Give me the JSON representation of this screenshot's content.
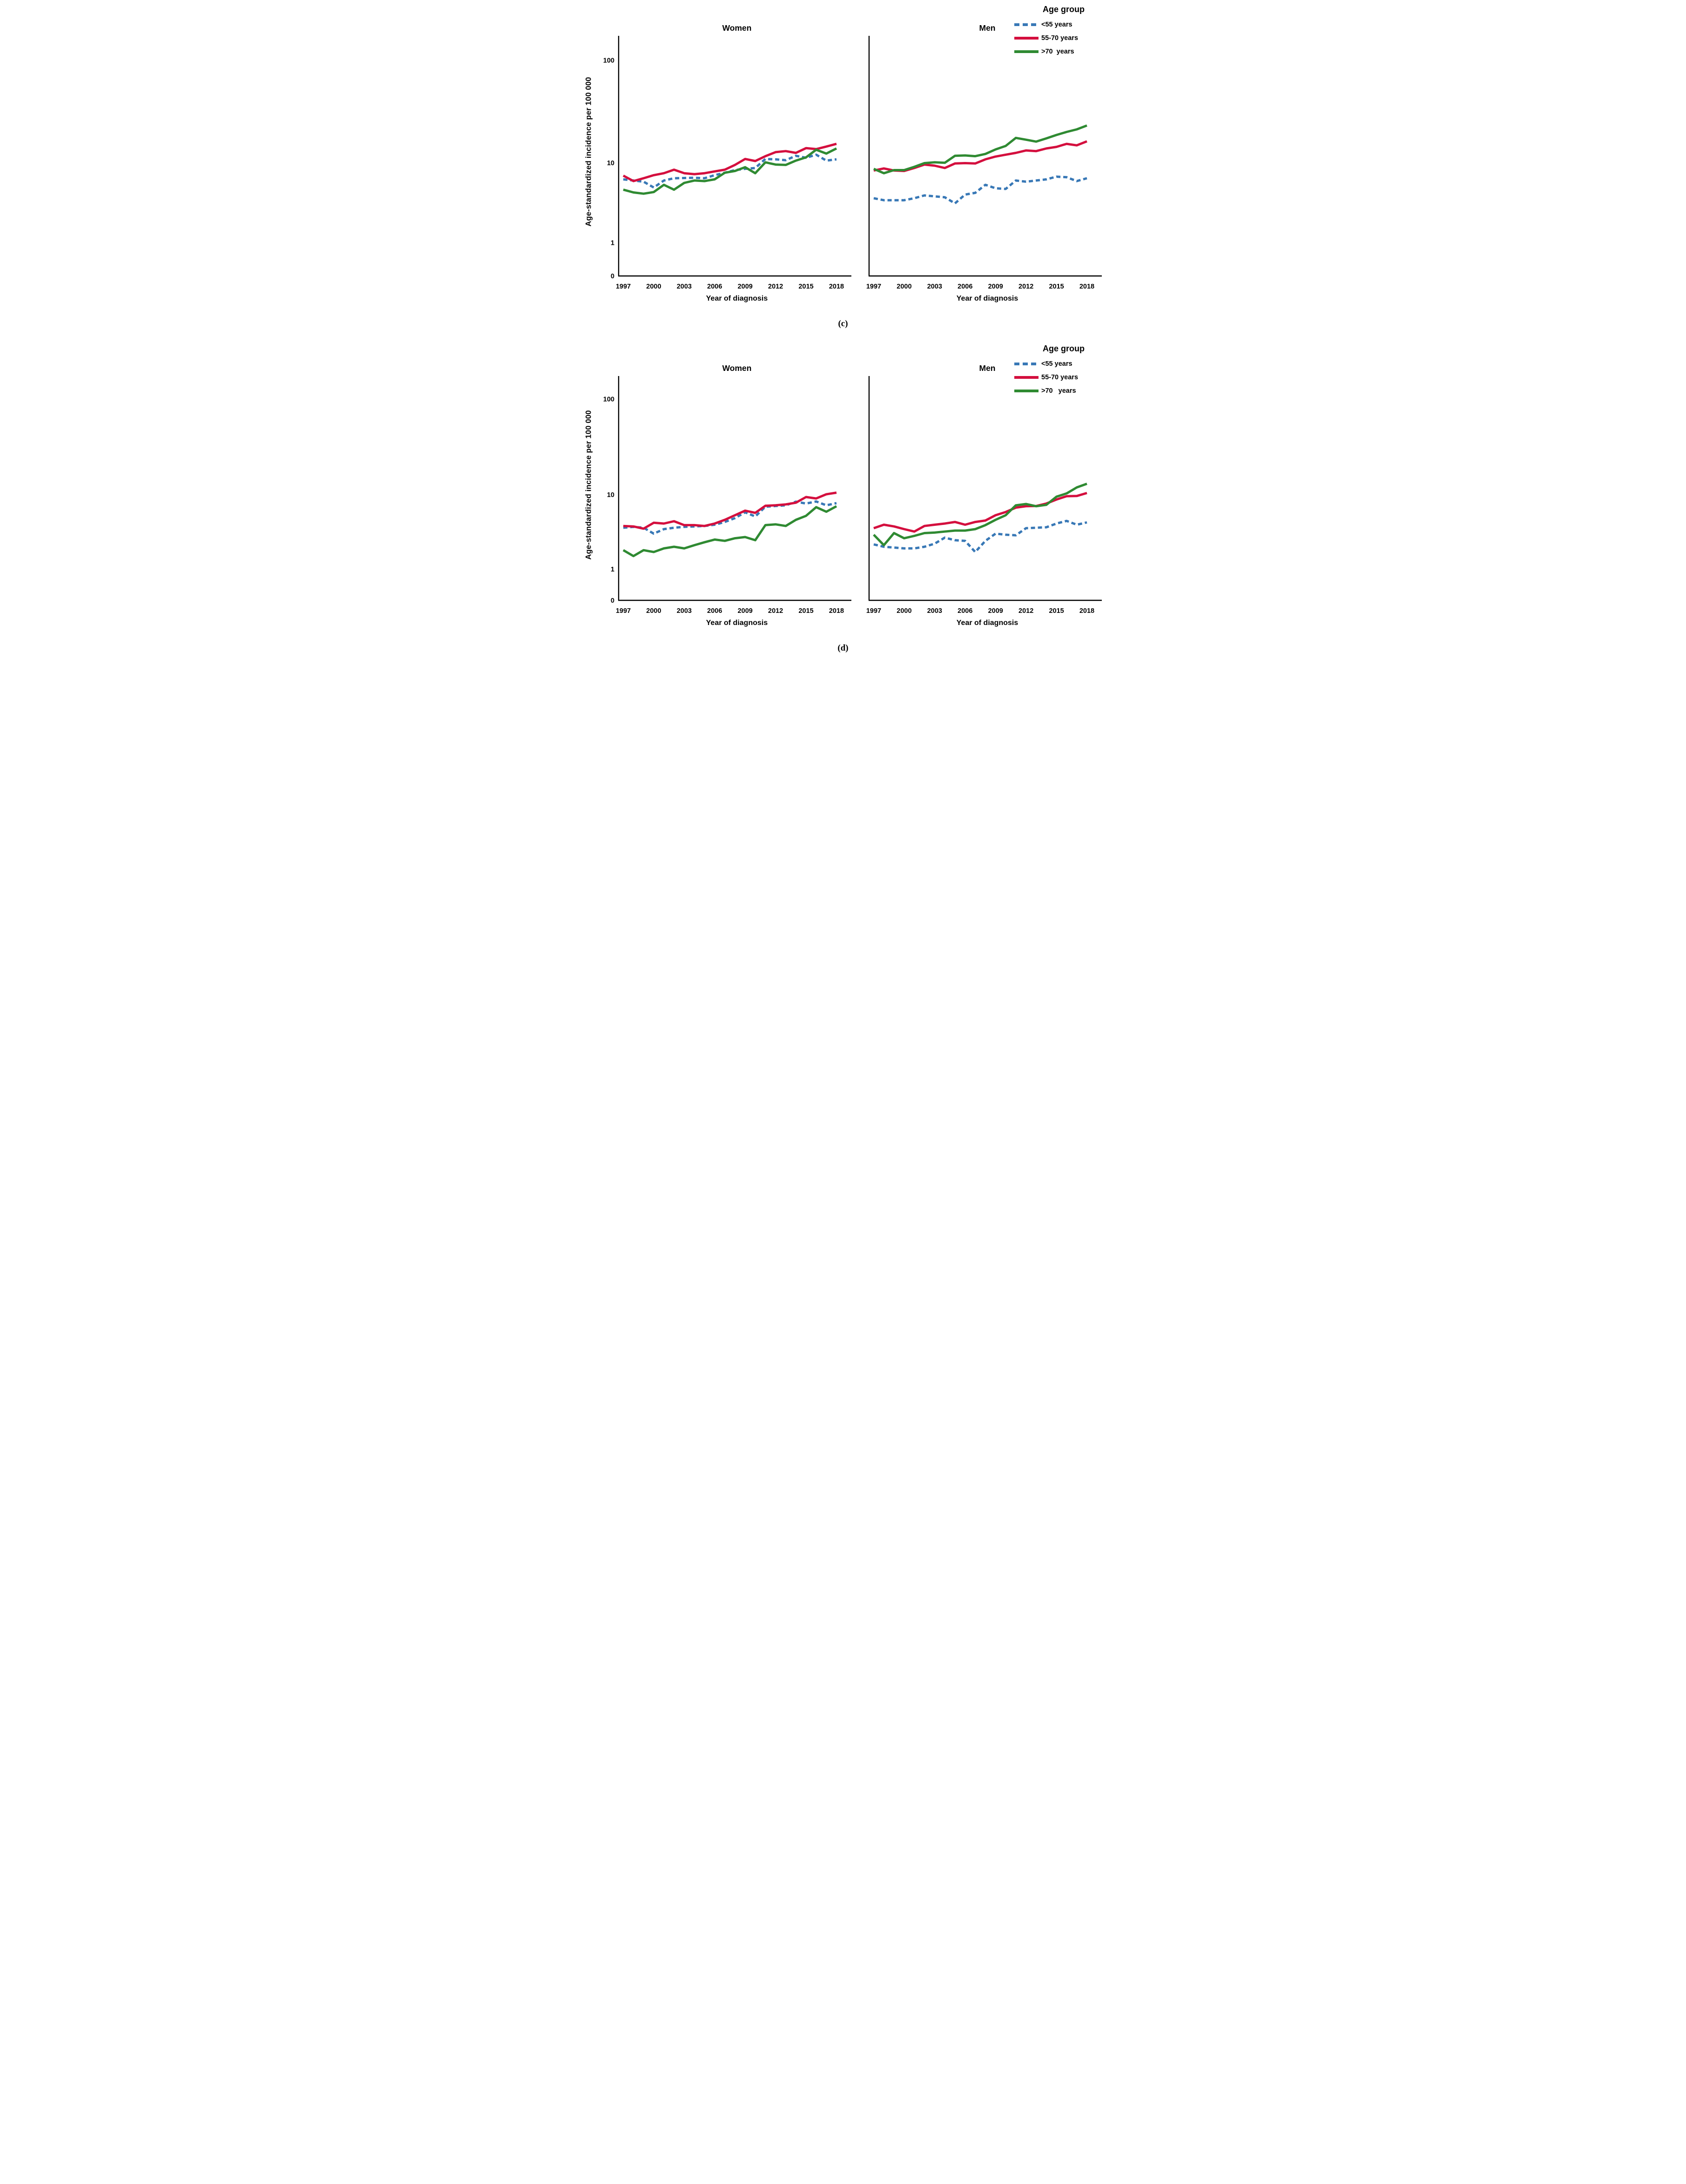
{
  "figures": [
    {
      "caption": "(c)",
      "y_axis_label": "Age-standardized incidence per 100 000",
      "x_axis_label": "Year of diagnosis",
      "legend": {
        "title": "Age group",
        "items": [
          {
            "label": "<55 years"
          },
          {
            "label": "55-70 years"
          },
          {
            "label": ">70  years"
          }
        ]
      },
      "panels": [
        {
          "title": "Women"
        },
        {
          "title": "Men"
        }
      ]
    },
    {
      "caption": "(d)",
      "y_axis_label": "Age-standardized incidence per 100 000",
      "x_axis_label": "Year of diagnosis",
      "legend": {
        "title": "Age group",
        "items": [
          {
            "label": "<55 years"
          },
          {
            "label": "55-70 years"
          },
          {
            "label": ">70   years"
          }
        ]
      },
      "panels": [
        {
          "title": "Women"
        },
        {
          "title": "Men"
        }
      ]
    }
  ],
  "colors": {
    "lt55_blue": "#3878B6",
    "r55_70_red": "#D40F3E",
    "gt70_green": "#2F8A32",
    "axis_black": "#000000"
  },
  "chart_data": [
    {
      "type": "line",
      "title": "Women",
      "panel": "c",
      "xlabel": "Year of diagnosis",
      "ylabel": "Age-standardized incidence per 100 000",
      "yscale": "log, ticks at 0/1/10/100",
      "yticks": [
        0,
        1,
        10,
        100
      ],
      "x_tick_labels": [
        1997,
        2000,
        2003,
        2006,
        2009,
        2012,
        2015,
        2018
      ],
      "x": [
        1997,
        1998,
        1999,
        2000,
        2001,
        2002,
        2003,
        2004,
        2005,
        2006,
        2007,
        2008,
        2009,
        2010,
        2011,
        2012,
        2013,
        2014,
        2015,
        2016,
        2017,
        2018
      ],
      "series": [
        {
          "name": "<55 years",
          "color": "#3878B6",
          "dash": true,
          "values": [
            6.2,
            6.0,
            5.8,
            4.9,
            6.0,
            6.4,
            6.45,
            6.5,
            6.4,
            7.0,
            7.5,
            8.1,
            8.4,
            8.6,
            10.9,
            10.8,
            10.6,
            11.7,
            11.2,
            12.0,
            10.5,
            10.8
          ]
        },
        {
          "name": "55-70 years",
          "color": "#D40F3E",
          "dash": false,
          "values": [
            6.9,
            5.9,
            6.4,
            7.0,
            7.4,
            8.2,
            7.4,
            7.2,
            7.4,
            7.8,
            8.2,
            9.4,
            10.9,
            10.4,
            11.6,
            12.7,
            13.0,
            12.5,
            13.9,
            13.6,
            14.4,
            15.3
          ]
        },
        {
          "name": ">70 years",
          "color": "#2F8A32",
          "dash": false,
          "values": [
            4.6,
            4.25,
            4.1,
            4.3,
            5.3,
            4.6,
            5.6,
            6.0,
            5.9,
            6.2,
            7.5,
            7.9,
            8.8,
            7.4,
            10.1,
            9.5,
            9.4,
            10.5,
            11.3,
            13.4,
            12.3,
            13.8
          ]
        }
      ]
    },
    {
      "type": "line",
      "title": "Men",
      "panel": "c",
      "xlabel": "Year of diagnosis",
      "ylabel": "Age-standardized incidence per 100 000",
      "yscale": "log, ticks at 0/1/10/100",
      "yticks": [
        0,
        1,
        10,
        100
      ],
      "x_tick_labels": [
        1997,
        2000,
        2003,
        2006,
        2009,
        2012,
        2015,
        2018
      ],
      "x": [
        1997,
        1998,
        1999,
        2000,
        2001,
        2002,
        2003,
        2004,
        2005,
        2006,
        2007,
        2008,
        2009,
        2010,
        2011,
        2012,
        2013,
        2014,
        2015,
        2016,
        2017,
        2018
      ],
      "series": [
        {
          "name": "<55 years",
          "color": "#3878B6",
          "dash": true,
          "values": [
            3.6,
            3.4,
            3.4,
            3.4,
            3.6,
            3.9,
            3.8,
            3.7,
            3.1,
            4.0,
            4.2,
            5.3,
            4.8,
            4.7,
            6.0,
            5.8,
            6.0,
            6.2,
            6.7,
            6.6,
            5.9,
            6.4
          ]
        },
        {
          "name": "55-70 years",
          "color": "#D40F3E",
          "dash": false,
          "values": [
            8.0,
            8.5,
            8.0,
            7.9,
            8.6,
            9.5,
            9.2,
            8.6,
            9.8,
            9.9,
            9.8,
            10.8,
            11.5,
            12.0,
            12.5,
            13.2,
            13.0,
            13.8,
            14.3,
            15.3,
            14.8,
            16.2
          ]
        },
        {
          "name": ">70 years",
          "color": "#2F8A32",
          "dash": false,
          "values": [
            8.4,
            7.4,
            8.1,
            8.1,
            8.9,
            9.9,
            10.1,
            10.0,
            11.7,
            11.8,
            11.6,
            12.2,
            13.5,
            14.6,
            17.5,
            16.8,
            16.1,
            17.3,
            18.7,
            20.0,
            21.2,
            23.1
          ]
        }
      ]
    },
    {
      "type": "line",
      "title": "Women",
      "panel": "d",
      "xlabel": "Year of diagnosis",
      "ylabel": "Age-standardized incidence per 100 000",
      "yscale": "log, ticks at 0/1/10/100",
      "yticks": [
        0,
        1,
        10,
        100
      ],
      "x_tick_labels": [
        1997,
        2000,
        2003,
        2006,
        2009,
        2012,
        2015,
        2018
      ],
      "x": [
        1997,
        1998,
        1999,
        2000,
        2001,
        2002,
        2003,
        2004,
        2005,
        2006,
        2007,
        2008,
        2009,
        2010,
        2011,
        2012,
        2013,
        2014,
        2015,
        2016,
        2017,
        2018
      ],
      "series": [
        {
          "name": "<55 years",
          "color": "#3878B6",
          "dash": true,
          "values": [
            3.6,
            3.7,
            3.6,
            3.0,
            3.45,
            3.6,
            3.7,
            3.75,
            3.8,
            3.95,
            4.3,
            4.85,
            5.8,
            5.1,
            6.9,
            7.05,
            7.2,
            8.05,
            7.6,
            8.1,
            7.2,
            7.7
          ]
        },
        {
          "name": "55-70 years",
          "color": "#D40F3E",
          "dash": false,
          "values": [
            3.8,
            3.75,
            3.5,
            4.2,
            4.1,
            4.4,
            3.9,
            3.9,
            3.8,
            4.1,
            4.6,
            5.3,
            6.1,
            5.7,
            7.1,
            7.2,
            7.4,
            7.8,
            9.3,
            8.9,
            10.1,
            10.5
          ]
        },
        {
          "name": ">70 years",
          "color": "#2F8A32",
          "dash": false,
          "values": [
            1.8,
            1.5,
            1.8,
            1.7,
            1.9,
            2.0,
            1.9,
            2.1,
            2.3,
            2.5,
            2.4,
            2.6,
            2.7,
            2.45,
            3.9,
            4.0,
            3.8,
            4.6,
            5.2,
            6.8,
            5.9,
            7.0
          ]
        }
      ]
    },
    {
      "type": "line",
      "title": "Men",
      "panel": "d",
      "xlabel": "Year of diagnosis",
      "ylabel": "Age-standardized incidence per 100 000",
      "yscale": "log, ticks at 0/1/10/100",
      "yticks": [
        0,
        1,
        10,
        100
      ],
      "x_tick_labels": [
        1997,
        2000,
        2003,
        2006,
        2009,
        2012,
        2015,
        2018
      ],
      "x": [
        1997,
        1998,
        1999,
        2000,
        2001,
        2002,
        2003,
        2004,
        2005,
        2006,
        2007,
        2008,
        2009,
        2010,
        2011,
        2012,
        2013,
        2014,
        2015,
        2016,
        2017,
        2018
      ],
      "series": [
        {
          "name": "<55 years",
          "color": "#3878B6",
          "dash": true,
          "values": [
            2.15,
            2.0,
            1.95,
            1.9,
            1.9,
            2.0,
            2.2,
            2.65,
            2.45,
            2.4,
            1.7,
            2.4,
            3.0,
            2.9,
            2.85,
            3.55,
            3.6,
            3.65,
            4.1,
            4.45,
            3.95,
            4.25
          ]
        },
        {
          "name": "55-70 years",
          "color": "#D40F3E",
          "dash": false,
          "values": [
            3.55,
            3.95,
            3.75,
            3.45,
            3.2,
            3.8,
            3.95,
            4.1,
            4.3,
            3.95,
            4.3,
            4.5,
            5.3,
            5.85,
            6.7,
            7.0,
            7.05,
            7.6,
            8.6,
            9.55,
            9.6,
            10.4
          ]
        },
        {
          "name": ">70 years",
          "color": "#2F8A32",
          "dash": false,
          "values": [
            2.9,
            2.1,
            3.05,
            2.6,
            2.8,
            3.05,
            3.1,
            3.2,
            3.3,
            3.3,
            3.45,
            3.9,
            4.6,
            5.3,
            7.2,
            7.5,
            7.0,
            7.3,
            9.4,
            10.3,
            11.9,
            13.0
          ]
        }
      ]
    }
  ]
}
